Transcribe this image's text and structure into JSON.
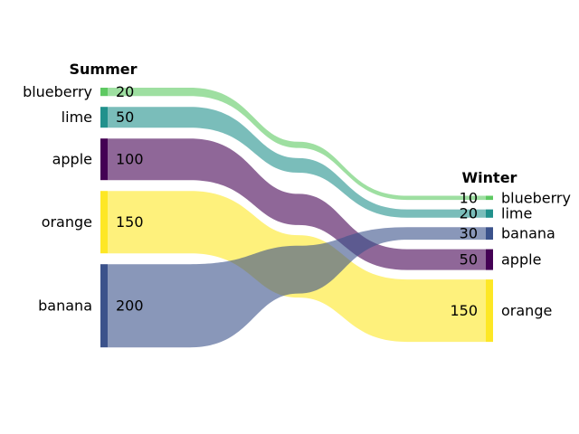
{
  "chart_data": {
    "type": "sankey",
    "left": {
      "title": "Summer",
      "nodes": [
        {
          "name": "blueberry",
          "value": 20,
          "color": "#5ec962"
        },
        {
          "name": "lime",
          "value": 50,
          "color": "#21918c"
        },
        {
          "name": "apple",
          "value": 100,
          "color": "#440154"
        },
        {
          "name": "orange",
          "value": 150,
          "color": "#fde725"
        },
        {
          "name": "banana",
          "value": 200,
          "color": "#3b528b"
        }
      ]
    },
    "right": {
      "title": "Winter",
      "nodes": [
        {
          "name": "blueberry",
          "value": 10,
          "color": "#5ec962"
        },
        {
          "name": "lime",
          "value": 20,
          "color": "#21918c"
        },
        {
          "name": "banana",
          "value": 30,
          "color": "#3b528b"
        },
        {
          "name": "apple",
          "value": 50,
          "color": "#440154"
        },
        {
          "name": "orange",
          "value": 150,
          "color": "#fde725"
        }
      ]
    }
  }
}
